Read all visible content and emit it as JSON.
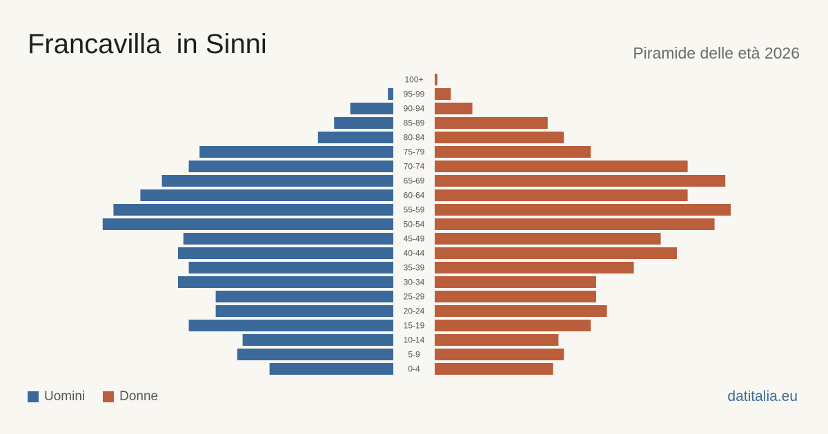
{
  "header": {
    "title": "Francavilla  in Sinni",
    "subtitle": "Piramide delle età 2026"
  },
  "footer": {
    "brand": "datitalia.eu"
  },
  "colors": {
    "male": "#3b6a9a",
    "female": "#bb5e3c",
    "tick": "#555555"
  },
  "chart_data": {
    "type": "bar",
    "orientation": "horizontal-pyramid",
    "categories": [
      "100+",
      "95-99",
      "90-94",
      "85-89",
      "80-84",
      "75-79",
      "70-74",
      "65-69",
      "60-64",
      "55-59",
      "50-54",
      "45-49",
      "40-44",
      "35-39",
      "30-34",
      "25-29",
      "20-24",
      "15-19",
      "10-14",
      "5-9",
      "0-4"
    ],
    "series": [
      {
        "name": "Uomini",
        "side": "left",
        "color": "#3b6a9a",
        "values": [
          0,
          1,
          8,
          11,
          14,
          36,
          38,
          43,
          47,
          52,
          54,
          39,
          40,
          38,
          40,
          33,
          33,
          38,
          28,
          29,
          23
        ]
      },
      {
        "name": "Donne",
        "side": "right",
        "color": "#bb5e3c",
        "values": [
          0.5,
          3,
          7,
          21,
          24,
          29,
          47,
          54,
          47,
          55,
          52,
          42,
          45,
          37,
          30,
          30,
          32,
          29,
          23,
          24,
          22
        ]
      }
    ],
    "legend": "bottom-left",
    "grid": false
  }
}
